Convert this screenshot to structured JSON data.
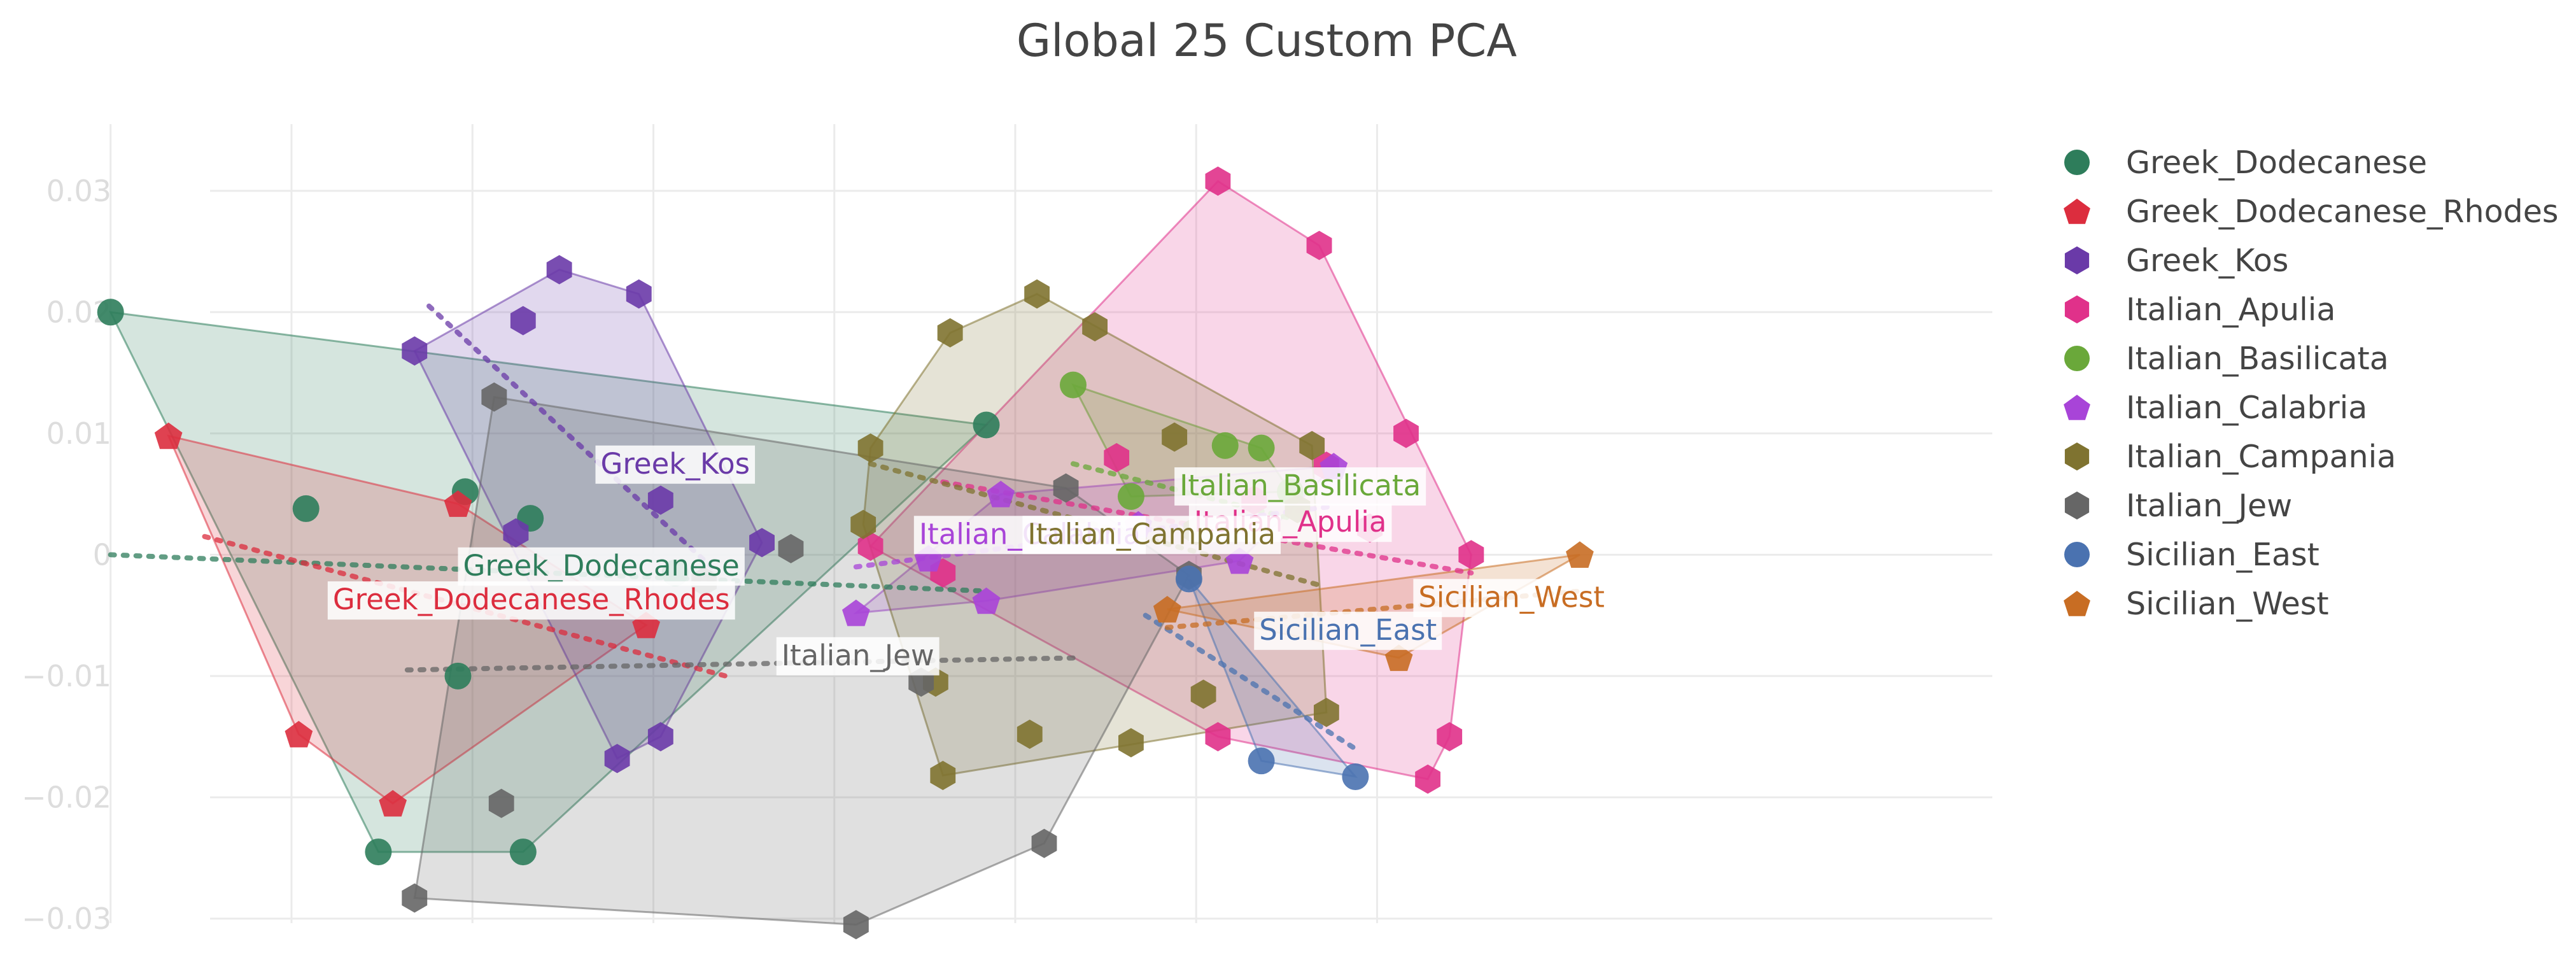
{
  "chart_data": {
    "type": "scatter",
    "title": "Global 25 Custom PCA",
    "xlabel": "",
    "ylabel": "",
    "xlim": [
      -0.0105,
      0.0165
    ],
    "ylim": [
      -0.033,
      0.0355
    ],
    "x_gridlines": [
      -0.0095,
      -0.007,
      -0.0045,
      -0.002,
      0.0005,
      0.003,
      0.0055,
      0.008
    ],
    "y_ticks": [
      {
        "value": 0.03,
        "label": "0.03"
      },
      {
        "value": 0.02,
        "label": "0.02"
      },
      {
        "value": 0.01,
        "label": "0.01"
      },
      {
        "value": 0.0,
        "label": "0"
      },
      {
        "value": -0.01,
        "label": "−0.01"
      },
      {
        "value": -0.02,
        "label": "−0.02"
      },
      {
        "value": -0.03,
        "label": "−0.03"
      }
    ],
    "grid": true,
    "legend_position": "right",
    "series": [
      {
        "name": "Greek_Dodecanese",
        "color": "#2e7d5b",
        "symbol": "circle",
        "points": [
          [
            -0.0095,
            0.02
          ],
          [
            -0.0068,
            0.0038
          ],
          [
            -0.0058,
            -0.0245
          ],
          [
            -0.0047,
            -0.01
          ],
          [
            -0.0046,
            0.0052
          ],
          [
            -0.0037,
            0.003
          ],
          [
            -0.0038,
            -0.0245
          ],
          [
            -0.0017,
            -0.0015
          ],
          [
            0.0026,
            0.0107
          ]
        ],
        "trend": [
          [
            -0.0095,
            0.0
          ],
          [
            0.0026,
            -0.003
          ]
        ],
        "label": {
          "text": "Greek_Dodecanese",
          "x": -0.0047,
          "y": -0.0016
        }
      },
      {
        "name": "Greek_Dodecanese_Rhodes",
        "color": "#dc2d3e",
        "symbol": "pentagon",
        "points": [
          [
            -0.0087,
            0.0098
          ],
          [
            -0.0069,
            -0.0148
          ],
          [
            -0.0056,
            -0.0205
          ],
          [
            -0.0021,
            -0.0058
          ],
          [
            -0.0047,
            0.0042
          ]
        ],
        "trend": [
          [
            -0.0082,
            0.0015
          ],
          [
            -0.001,
            -0.01
          ]
        ],
        "label": {
          "text": "Greek_Dodecanese_Rhodes",
          "x": -0.0065,
          "y": -0.0044
        }
      },
      {
        "name": "Greek_Kos",
        "color": "#6a3aa8",
        "symbol": "hexagon",
        "points": [
          [
            -0.0053,
            0.0168
          ],
          [
            -0.0038,
            0.0193
          ],
          [
            -0.0033,
            0.0235
          ],
          [
            -0.0022,
            0.0215
          ],
          [
            -0.0019,
            0.0045
          ],
          [
            -0.0039,
            0.0018
          ],
          [
            -0.0025,
            -0.0168
          ],
          [
            -0.0019,
            -0.015
          ],
          [
            -0.0005,
            0.001
          ]
        ],
        "trend": [
          [
            -0.0051,
            0.0205
          ],
          [
            -0.0012,
            -0.001
          ]
        ],
        "label": {
          "text": "Greek_Kos",
          "x": -0.0028,
          "y": 0.0068
        }
      },
      {
        "name": "Italian_Apulia",
        "color": "#e0318a",
        "symbol": "hexagon",
        "points": [
          [
            0.0058,
            0.0308
          ],
          [
            0.0072,
            0.0255
          ],
          [
            0.0084,
            0.01
          ],
          [
            0.0093,
            0.0
          ],
          [
            0.0087,
            -0.0185
          ],
          [
            0.009,
            -0.015
          ],
          [
            0.0058,
            -0.015
          ],
          [
            0.0079,
            0.0022
          ],
          [
            0.0073,
            0.0073
          ],
          [
            0.0063,
            0.0045
          ],
          [
            0.0044,
            0.008
          ],
          [
            0.002,
            -0.0015
          ],
          [
            0.001,
            0.0007
          ]
        ],
        "trend": [
          [
            0.002,
            0.006
          ],
          [
            0.0093,
            -0.0015
          ]
        ],
        "label": {
          "text": "Italian_Apulia",
          "x": 0.0054,
          "y": 0.002
        }
      },
      {
        "name": "Italian_Basilicata",
        "color": "#6aa83a",
        "symbol": "circle",
        "points": [
          [
            0.0038,
            0.014
          ],
          [
            0.0059,
            0.009
          ],
          [
            0.0064,
            0.0088
          ],
          [
            0.0068,
            0.0052
          ],
          [
            0.0046,
            0.0048
          ]
        ],
        "trend": [
          [
            0.0038,
            0.0075
          ],
          [
            0.0068,
            0.003
          ]
        ],
        "label": {
          "text": "Italian_Basilicata",
          "x": 0.0052,
          "y": 0.005
        }
      },
      {
        "name": "Italian_Calabria",
        "color": "#a844d8",
        "symbol": "pentagon",
        "points": [
          [
            0.0008,
            -0.0048
          ],
          [
            0.0028,
            0.005
          ],
          [
            0.0047,
            0.0025
          ],
          [
            0.0061,
            -0.0005
          ],
          [
            0.0074,
            0.0073
          ],
          [
            0.0026,
            -0.0038
          ],
          [
            0.0018,
            -0.0003
          ]
        ],
        "trend": [
          [
            0.0008,
            -0.001
          ],
          [
            0.0074,
            0.004
          ]
        ],
        "label": {
          "text": "Italian_Calabria",
          "x": 0.0016,
          "y": 0.001
        }
      },
      {
        "name": "Italian_Campania",
        "color": "#7f7330",
        "symbol": "hexagon",
        "points": [
          [
            0.001,
            0.0088
          ],
          [
            0.0021,
            0.0183
          ],
          [
            0.0033,
            0.0215
          ],
          [
            0.0041,
            0.0188
          ],
          [
            0.0052,
            0.0097
          ],
          [
            0.0071,
            0.009
          ],
          [
            0.0073,
            -0.013
          ],
          [
            0.0056,
            -0.0115
          ],
          [
            0.0046,
            -0.0155
          ],
          [
            0.0032,
            -0.0148
          ],
          [
            0.002,
            -0.0182
          ],
          [
            0.0009,
            0.0025
          ],
          [
            0.0019,
            -0.0105
          ],
          [
            0.0055,
            0.002
          ],
          [
            0.0069,
            0.0038
          ]
        ],
        "trend": [
          [
            0.001,
            0.0075
          ],
          [
            0.0072,
            -0.0025
          ]
        ],
        "label": {
          "text": "Italian_Campania",
          "x": 0.0031,
          "y": 0.001
        }
      },
      {
        "name": "Italian_Jew",
        "color": "#666666",
        "symbol": "hexagon",
        "points": [
          [
            -0.0053,
            -0.0283
          ],
          [
            -0.0041,
            -0.0205
          ],
          [
            -0.0042,
            0.013
          ],
          [
            -0.0001,
            0.0005
          ],
          [
            -0.0013,
            -0.0022
          ],
          [
            0.0008,
            -0.0305
          ],
          [
            0.0034,
            -0.0238
          ],
          [
            0.0037,
            0.0055
          ],
          [
            0.0017,
            -0.0105
          ],
          [
            0.0054,
            -0.0017
          ]
        ],
        "trend": [
          [
            -0.0054,
            -0.0095
          ],
          [
            0.0039,
            -0.0085
          ]
        ],
        "label": {
          "text": "Italian_Jew",
          "x": -0.0003,
          "y": -0.009
        }
      },
      {
        "name": "Sicilian_East",
        "color": "#4a72b0",
        "symbol": "circle",
        "points": [
          [
            0.0054,
            -0.002
          ],
          [
            0.0064,
            -0.017
          ],
          [
            0.0077,
            -0.0183
          ]
        ],
        "trend": [
          [
            0.0048,
            -0.005
          ],
          [
            0.0077,
            -0.016
          ]
        ],
        "label": {
          "text": "Sicilian_East",
          "x": 0.0063,
          "y": -0.0069
        }
      },
      {
        "name": "Sicilian_West",
        "color": "#c86d23",
        "symbol": "pentagon",
        "points": [
          [
            0.0051,
            -0.0045
          ],
          [
            0.0083,
            -0.0085
          ],
          [
            0.0108,
            0.0
          ]
        ],
        "trend": [
          [
            0.0051,
            -0.006
          ],
          [
            0.0108,
            -0.003
          ]
        ],
        "label": {
          "text": "Sicilian_West",
          "x": 0.0085,
          "y": -0.0042
        }
      }
    ]
  }
}
